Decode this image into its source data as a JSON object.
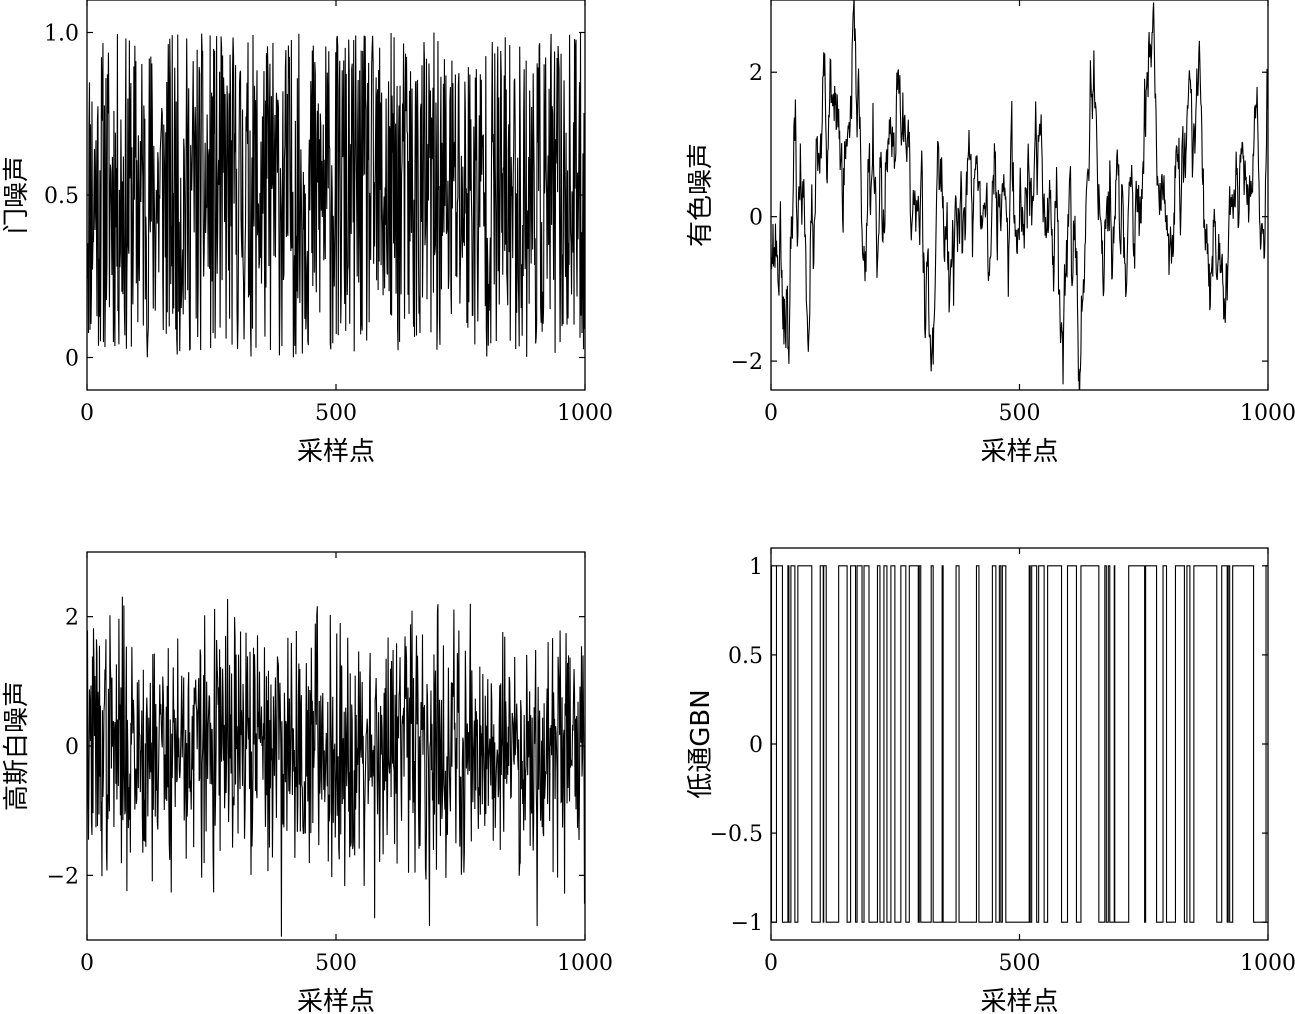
{
  "chart_data": [
    {
      "type": "line",
      "xlabel": "采样点",
      "ylabel": "门噪声",
      "xlim": [
        0,
        1000
      ],
      "ylim": [
        -0.1,
        1.1
      ],
      "xticks": [
        0,
        500,
        1000
      ],
      "xtick_labels": [
        "0",
        "500",
        "1000"
      ],
      "yticks": [
        0,
        0.5,
        1.0
      ],
      "ytick_labels": [
        "0",
        "0.5",
        "1.0"
      ],
      "grid": false,
      "series": [
        {
          "kind": "uniform",
          "n": 1000,
          "seed": 11,
          "min": 0,
          "max": 1,
          "color": "#000000"
        }
      ]
    },
    {
      "type": "line",
      "xlabel": "采样点",
      "ylabel": "有色噪声",
      "xlim": [
        0,
        1000
      ],
      "ylim": [
        -2.4,
        3.0
      ],
      "xticks": [
        0,
        500,
        1000
      ],
      "xtick_labels": [
        "0",
        "500",
        "1000"
      ],
      "yticks": [
        -2,
        0,
        2
      ],
      "ytick_labels": [
        "−2",
        "0",
        "2"
      ],
      "grid": false,
      "series": [
        {
          "kind": "colored",
          "n": 1000,
          "seed": 23,
          "coef": 0.93,
          "std": 0.95,
          "color": "#000000"
        }
      ]
    },
    {
      "type": "line",
      "xlabel": "采样点",
      "ylabel": "高斯白噪声",
      "xlim": [
        0,
        1000
      ],
      "ylim": [
        -3.0,
        3.0
      ],
      "xticks": [
        0,
        500,
        1000
      ],
      "xtick_labels": [
        "0",
        "500",
        "1000"
      ],
      "yticks": [
        -2,
        0,
        2
      ],
      "ytick_labels": [
        "−2",
        "0",
        "2"
      ],
      "grid": false,
      "series": [
        {
          "kind": "gaussian",
          "n": 1000,
          "seed": 37,
          "std": 0.95,
          "color": "#000000"
        }
      ]
    },
    {
      "type": "line",
      "xlabel": "采样点",
      "ylabel": "低通GBN",
      "xlim": [
        0,
        1000
      ],
      "ylim": [
        -1.1,
        1.1
      ],
      "xticks": [
        0,
        500,
        1000
      ],
      "xtick_labels": [
        "0",
        "500",
        "1000"
      ],
      "yticks": [
        -1,
        -0.5,
        0,
        0.5,
        1
      ],
      "ytick_labels": [
        "−1",
        "−0.5",
        "0",
        "0.5",
        "1"
      ],
      "grid": false,
      "series": [
        {
          "kind": "binary",
          "n": 1000,
          "seed": 53,
          "switch_prob": 0.09,
          "levels": [
            -1,
            1
          ],
          "color": "#000000"
        }
      ]
    }
  ]
}
